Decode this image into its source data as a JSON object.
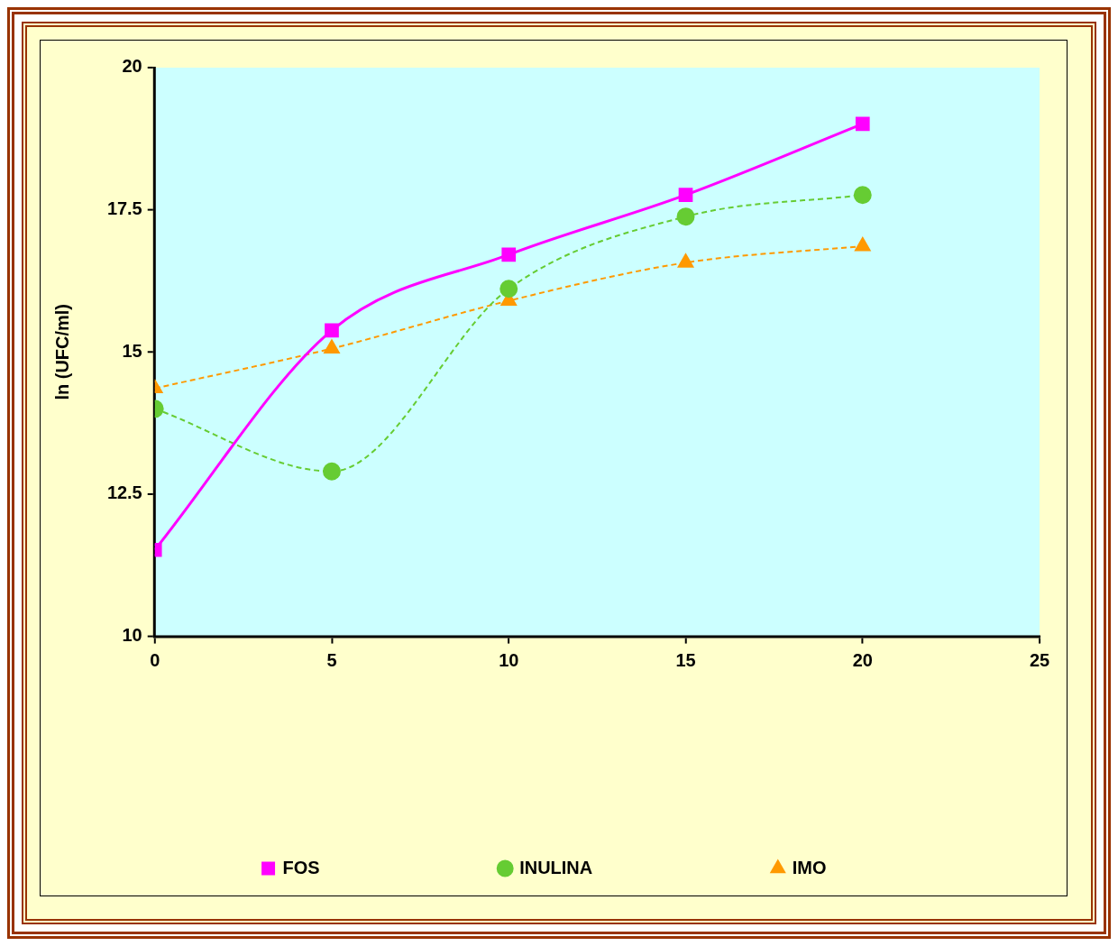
{
  "chart_data": {
    "type": "line",
    "ylabel": "ln (UFC/ml)",
    "x": [
      0,
      5,
      10,
      15,
      20
    ],
    "xlim": [
      0,
      25
    ],
    "xticks": [
      0,
      5,
      10,
      15,
      20,
      25
    ],
    "ylim": [
      10,
      20
    ],
    "yticks": [
      10,
      12.5,
      15,
      17.5,
      20
    ],
    "grid": false,
    "legend": "bottom",
    "series": [
      {
        "name": "FOS",
        "color": "#ff00ff",
        "values": [
          11.52,
          15.38,
          16.71,
          17.76,
          19.01
        ],
        "marker": "square",
        "line_style": "solid"
      },
      {
        "name": "INULINA",
        "color": "#66cc33",
        "values": [
          14.0,
          12.9,
          16.11,
          17.38,
          17.76
        ],
        "marker": "circle",
        "line_style": "dashed"
      },
      {
        "name": "IMO",
        "color": "#ff9900",
        "values": [
          14.36,
          15.06,
          15.9,
          16.57,
          16.86
        ],
        "marker": "triangle",
        "line_style": "dashed"
      }
    ]
  }
}
